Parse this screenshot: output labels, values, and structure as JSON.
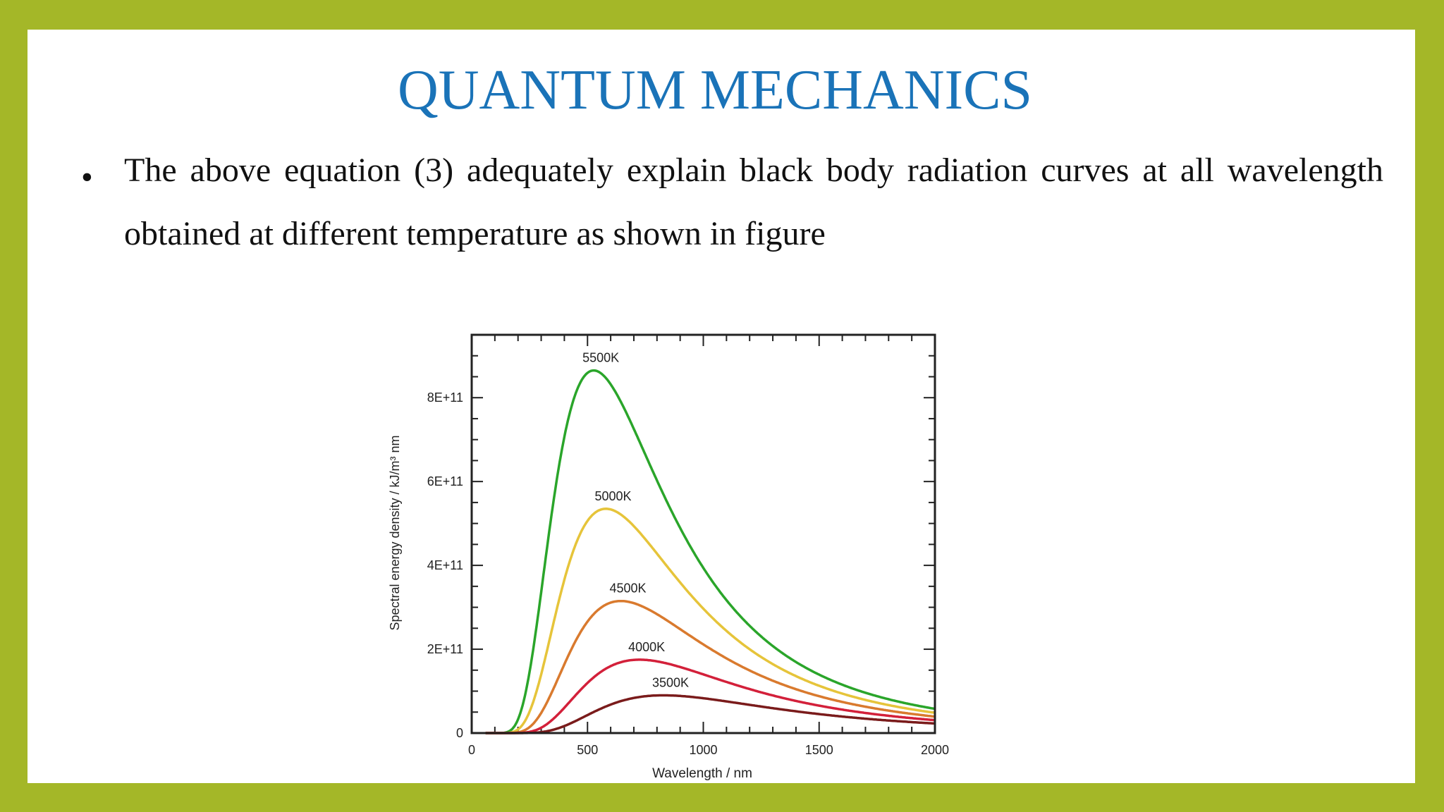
{
  "slide": {
    "title": "QUANTUM MECHANICS",
    "bullet_symbol": "•",
    "bullet_text": "The above equation (3) adequately explain black body radiation curves at all wavelength obtained at different temperature as shown in figure"
  },
  "colors": {
    "frame": "#a4b728",
    "title": "#1a73b8"
  },
  "chart_data": {
    "type": "line",
    "title": "",
    "xlabel": "Wavelength / nm",
    "ylabel": "Spectral energy density / kJ/m³ nm",
    "xlim": [
      0,
      2000
    ],
    "ylim": [
      0,
      950000000000.0
    ],
    "x_ticks": [
      0,
      500,
      1000,
      1500,
      2000
    ],
    "x_tick_labels": [
      "0",
      "500",
      "1000",
      "1500",
      "2000"
    ],
    "y_ticks": [
      0,
      200000000000.0,
      400000000000.0,
      600000000000.0,
      800000000000.0
    ],
    "y_tick_labels": [
      "0",
      "2E+11",
      "4E+11",
      "6E+11",
      "8E+11"
    ],
    "grid": false,
    "legend": "none (curves labelled directly)",
    "series": [
      {
        "name": "5500K",
        "temperature_K": 5500,
        "color": "#2aa52a",
        "peak_x": 527,
        "peak_y": 865000000000.0
      },
      {
        "name": "5000K",
        "temperature_K": 5000,
        "color": "#e6c43a",
        "peak_x": 580,
        "peak_y": 535000000000.0
      },
      {
        "name": "4500K",
        "temperature_K": 4500,
        "color": "#d97a2e",
        "peak_x": 644,
        "peak_y": 315000000000.0
      },
      {
        "name": "4000K",
        "temperature_K": 4000,
        "color": "#d3203a",
        "peak_x": 725,
        "peak_y": 175000000000.0
      },
      {
        "name": "3500K",
        "temperature_K": 3500,
        "color": "#7a1b1b",
        "peak_x": 828,
        "peak_y": 90000000000.0
      }
    ]
  }
}
